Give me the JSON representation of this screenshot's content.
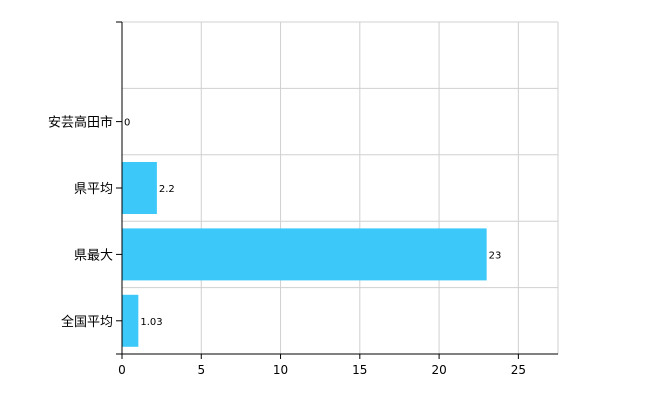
{
  "chart_data": {
    "type": "bar",
    "orientation": "horizontal",
    "categories": [
      "安芸高田市",
      "県平均",
      "県最大",
      "全国平均"
    ],
    "values": [
      0,
      2.2,
      23,
      1.03
    ],
    "value_labels": [
      "0",
      "2.2",
      "23",
      "1.03"
    ],
    "title": "",
    "xlabel": "",
    "ylabel": "",
    "xlim": [
      0,
      27.5
    ],
    "x_ticks": [
      0,
      5,
      10,
      15,
      20,
      25
    ],
    "x_tick_labels": [
      "0",
      "5",
      "10",
      "15",
      "20",
      "25"
    ],
    "grid": true,
    "legend": "none",
    "bar_color": "#3cc8f8",
    "grid_color": "#d0d0d0"
  }
}
